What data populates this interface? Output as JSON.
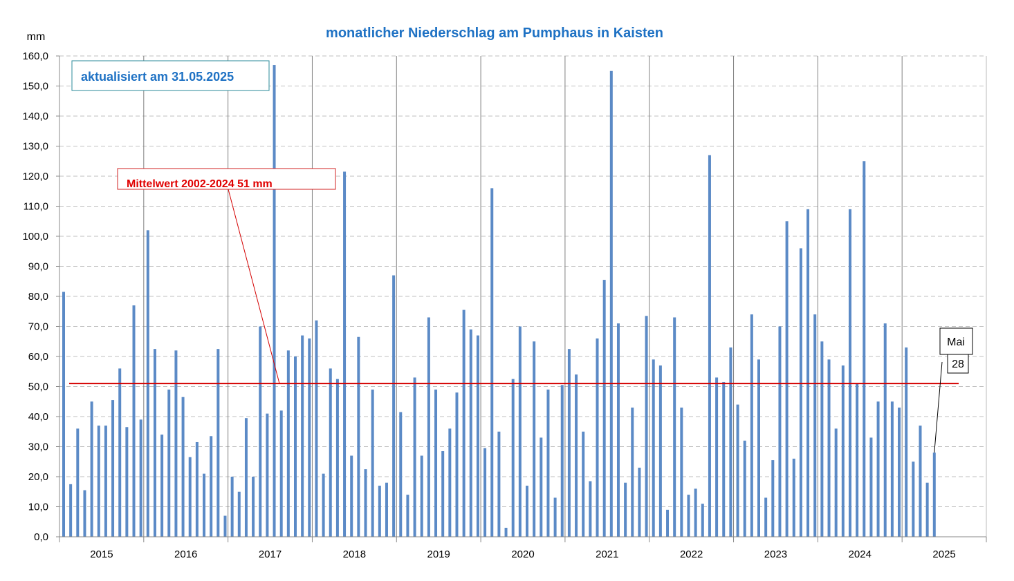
{
  "chart_data": {
    "type": "bar",
    "title": "monatlicher Niederschlag am Pumphaus in Kaisten",
    "ylabel": "mm",
    "ylim": [
      0,
      160
    ],
    "ytick_step": 10,
    "ytick_labels": [
      "0,0",
      "10,0",
      "20,0",
      "30,0",
      "40,0",
      "50,0",
      "60,0",
      "70,0",
      "80,0",
      "90,0",
      "100,0",
      "110,0",
      "120,0",
      "130,0",
      "140,0",
      "150,0",
      "160,0"
    ],
    "grid": true,
    "years": [
      "2015",
      "2016",
      "2017",
      "2018",
      "2019",
      "2020",
      "2021",
      "2022",
      "2023",
      "2024",
      "2025"
    ],
    "series": [
      {
        "values": [
          81.5,
          17.5,
          36,
          15.5,
          45,
          37,
          37,
          45.5,
          56,
          36.5,
          77,
          39,
          102,
          62.5,
          34,
          49,
          62,
          46.5,
          26.5,
          31.5,
          21,
          33.5,
          62.5,
          7,
          20,
          15,
          39.5,
          20,
          70,
          41,
          157,
          42,
          62,
          60,
          67,
          66,
          72,
          21,
          56,
          52.5,
          121.5,
          27,
          66.5,
          22.5,
          49,
          17,
          18,
          87,
          41.5,
          14,
          53,
          27,
          73,
          49,
          28.5,
          36,
          48,
          75.5,
          69,
          67,
          29.5,
          116,
          35,
          3,
          52.5,
          70,
          17,
          65,
          33,
          49,
          13,
          50.5,
          62.5,
          54,
          35,
          18.5,
          66,
          85.5,
          155,
          71,
          18,
          43,
          23,
          73.5,
          59,
          57,
          9,
          73,
          43,
          14,
          16,
          11,
          127,
          53,
          51.5,
          63,
          44,
          32,
          74,
          59,
          13,
          25.5,
          70,
          105,
          26,
          96,
          109,
          74,
          65,
          59,
          36,
          57,
          109,
          51,
          125,
          33,
          45,
          71,
          45,
          43,
          63,
          25,
          37,
          18,
          28
        ]
      }
    ],
    "mean": {
      "value": 51,
      "label": "Mittelwert 2002-2024  51 mm"
    },
    "annotations": {
      "updated": "aktualisiert am 31.05.2025",
      "last_month_name": "Mai",
      "last_month_value": "28"
    },
    "colors": {
      "bar": "#5b8ac6",
      "mean_line": "#d40000",
      "title": "#1f72c4",
      "grid": "#bfbfbf"
    }
  }
}
